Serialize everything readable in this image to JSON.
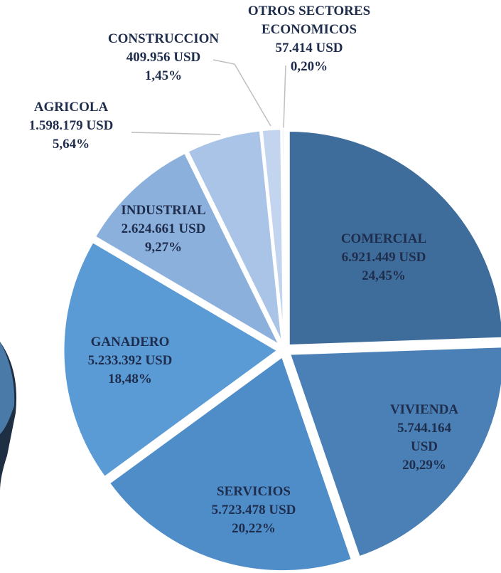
{
  "chart_data": {
    "type": "pie",
    "categories": [
      "COMERCIAL",
      "VIVIENDA",
      "SERVICIOS",
      "GANADERO",
      "INDUSTRIAL",
      "AGRICOLA",
      "CONSTRUCCION",
      "OTROS SECTORES ECONOMICOS"
    ],
    "values": [
      6921449,
      5744164,
      5723478,
      5233392,
      2624661,
      1598179,
      409956,
      57414
    ],
    "value_labels": [
      "6.921.449 USD",
      "5.744.164 USD",
      "5.723.478 USD",
      "5.233.392 USD",
      "2.624.661 USD",
      "1.598.179 USD",
      "409.956 USD",
      "57.414 USD"
    ],
    "percents": [
      24.45,
      20.29,
      20.22,
      18.48,
      9.27,
      5.64,
      1.45,
      0.2
    ],
    "percent_labels": [
      "24,45%",
      "20,29%",
      "20,22%",
      "18,48%",
      "9,27%",
      "5,64%",
      "1,45%",
      "0,20%"
    ],
    "colors": [
      "#3f6d9b",
      "#4a80b5",
      "#4f8dc9",
      "#5b9bd5",
      "#8cb0dc",
      "#a9c4e6",
      "#c3d5ee",
      "#dbe5f3"
    ]
  }
}
